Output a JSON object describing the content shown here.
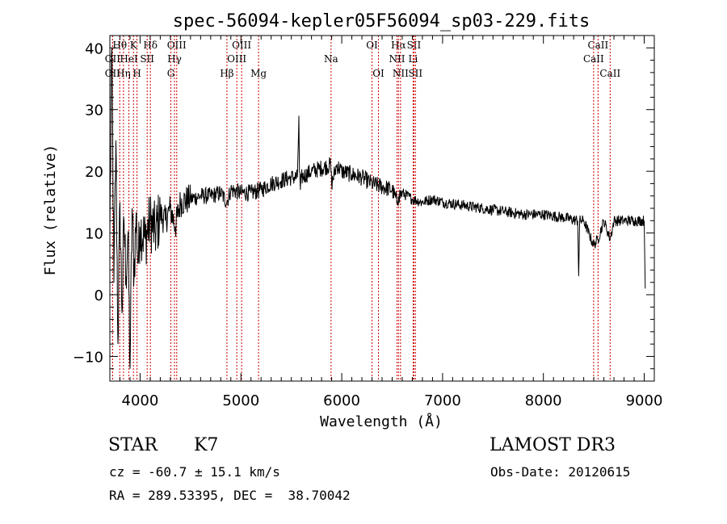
{
  "chart_data": {
    "type": "line",
    "title": "spec-56094-kepler05F56094_sp03-229.fits",
    "xlabel": "Wavelength (Å)",
    "ylabel": "Flux (relative)",
    "xlim": [
      3700,
      9100
    ],
    "ylim": [
      -14,
      42
    ],
    "xticks": [
      4000,
      5000,
      6000,
      7000,
      8000,
      9000
    ],
    "yticks": [
      -10,
      0,
      10,
      20,
      30,
      40
    ],
    "series": [
      {
        "name": "flux",
        "x": [
          3700,
          3720,
          3740,
          3760,
          3780,
          3800,
          3820,
          3840,
          3860,
          3880,
          3900,
          3920,
          3940,
          3960,
          3980,
          4000,
          4050,
          4100,
          4150,
          4200,
          4250,
          4300,
          4350,
          4400,
          4500,
          4600,
          4700,
          4800,
          4860,
          4900,
          5000,
          5100,
          5200,
          5300,
          5400,
          5500,
          5560,
          5575,
          5580,
          5590,
          5600,
          5700,
          5800,
          5890,
          5900,
          5950,
          6000,
          6100,
          6200,
          6300,
          6400,
          6500,
          6550,
          6563,
          6600,
          6700,
          6800,
          6900,
          7000,
          7200,
          7400,
          7600,
          7800,
          8000,
          8200,
          8340,
          8350,
          8360,
          8400,
          8498,
          8542,
          8600,
          8662,
          8700,
          8800,
          8900,
          9000,
          9010
        ],
        "y": [
          10,
          40,
          2,
          25,
          -8,
          15,
          -3,
          12,
          3,
          10,
          -12,
          14,
          3,
          13,
          5,
          11,
          9,
          12,
          10,
          13,
          12,
          14,
          11,
          15,
          15.5,
          16,
          16,
          16.5,
          15,
          17,
          16.5,
          16.5,
          17,
          18,
          18.5,
          19,
          19,
          29,
          20,
          17,
          19,
          20,
          20.5,
          21,
          18,
          21,
          20,
          19.5,
          19,
          18,
          17.5,
          17,
          15,
          16,
          16.5,
          15.5,
          15,
          15.5,
          15,
          14.5,
          14,
          13.5,
          13,
          13,
          12.5,
          12,
          3,
          12,
          12,
          8,
          9,
          12,
          9,
          12,
          12,
          12,
          12,
          1
        ]
      }
    ],
    "line_markers": [
      {
        "label": "Hθ",
        "x": 3798,
        "row": 0
      },
      {
        "label": "OII",
        "x": 3727,
        "row": 1
      },
      {
        "label": "OII",
        "x": 3727,
        "row": 2
      },
      {
        "label": "K",
        "x": 3934,
        "row": 0
      },
      {
        "label": "HeI",
        "x": 3889,
        "row": 1
      },
      {
        "label": "Hη",
        "x": 3835,
        "row": 2
      },
      {
        "label": "Hδ",
        "x": 4102,
        "row": 0
      },
      {
        "label": "SII",
        "x": 4070,
        "row": 1
      },
      {
        "label": "H",
        "x": 3969,
        "row": 2
      },
      {
        "label": "OIII",
        "x": 4363,
        "row": 0
      },
      {
        "label": "Hγ",
        "x": 4341,
        "row": 1
      },
      {
        "label": "G",
        "x": 4305,
        "row": 2
      },
      {
        "label": "OIII",
        "x": 5007,
        "row": 0
      },
      {
        "label": "OIII",
        "x": 4959,
        "row": 1
      },
      {
        "label": "Hβ",
        "x": 4861,
        "row": 2
      },
      {
        "label": "Mg",
        "x": 5175,
        "row": 2
      },
      {
        "label": "Na",
        "x": 5894,
        "row": 1
      },
      {
        "label": "OI",
        "x": 6300,
        "row": 0
      },
      {
        "label": "OI",
        "x": 6364,
        "row": 2
      },
      {
        "label": "Hα",
        "x": 6563,
        "row": 0
      },
      {
        "label": "SII",
        "x": 6716,
        "row": 0
      },
      {
        "label": "NII",
        "x": 6548,
        "row": 1
      },
      {
        "label": "Li",
        "x": 6708,
        "row": 1
      },
      {
        "label": "NII",
        "x": 6583,
        "row": 2
      },
      {
        "label": "SII",
        "x": 6731,
        "row": 2
      },
      {
        "label": "CaII",
        "x": 8542,
        "row": 0
      },
      {
        "label": "CaII",
        "x": 8498,
        "row": 1
      },
      {
        "label": "CaII",
        "x": 8662,
        "row": 2
      }
    ]
  },
  "info": {
    "object_class": "STAR",
    "subclass": "K7",
    "survey": "LAMOST DR3",
    "redshift": "cz = -60.7 ± 15.1 km/s",
    "obs_date": "Obs-Date: 20120615",
    "coords": "RA = 289.53395, DEC =  38.70042"
  }
}
